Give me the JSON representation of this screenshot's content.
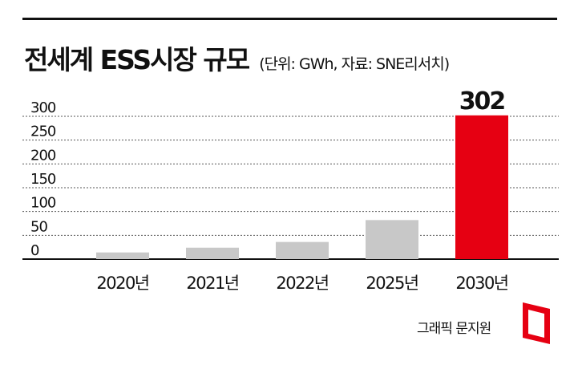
{
  "header": {
    "title": "전세계 ESS시장 규모",
    "subtitle": "(단위: GWh, 자료: SNE리서치)"
  },
  "credit": "그래픽 문지원",
  "colors": {
    "bar": "#c8c8c8",
    "highlight": "#e60012",
    "text": "#111111"
  },
  "chart_data": {
    "type": "bar",
    "title": "전세계 ESS시장 규모",
    "categories": [
      "2020년",
      "2021년",
      "2022년",
      "2025년",
      "2030년"
    ],
    "values": [
      14,
      24,
      36,
      82,
      302
    ],
    "highlight_index": 4,
    "data_labels": {
      "4": "302"
    },
    "yticks": [
      0,
      50,
      100,
      150,
      200,
      250,
      300
    ],
    "ylim": [
      0,
      310
    ],
    "grid": "dotted horizontal",
    "legend": "none"
  }
}
